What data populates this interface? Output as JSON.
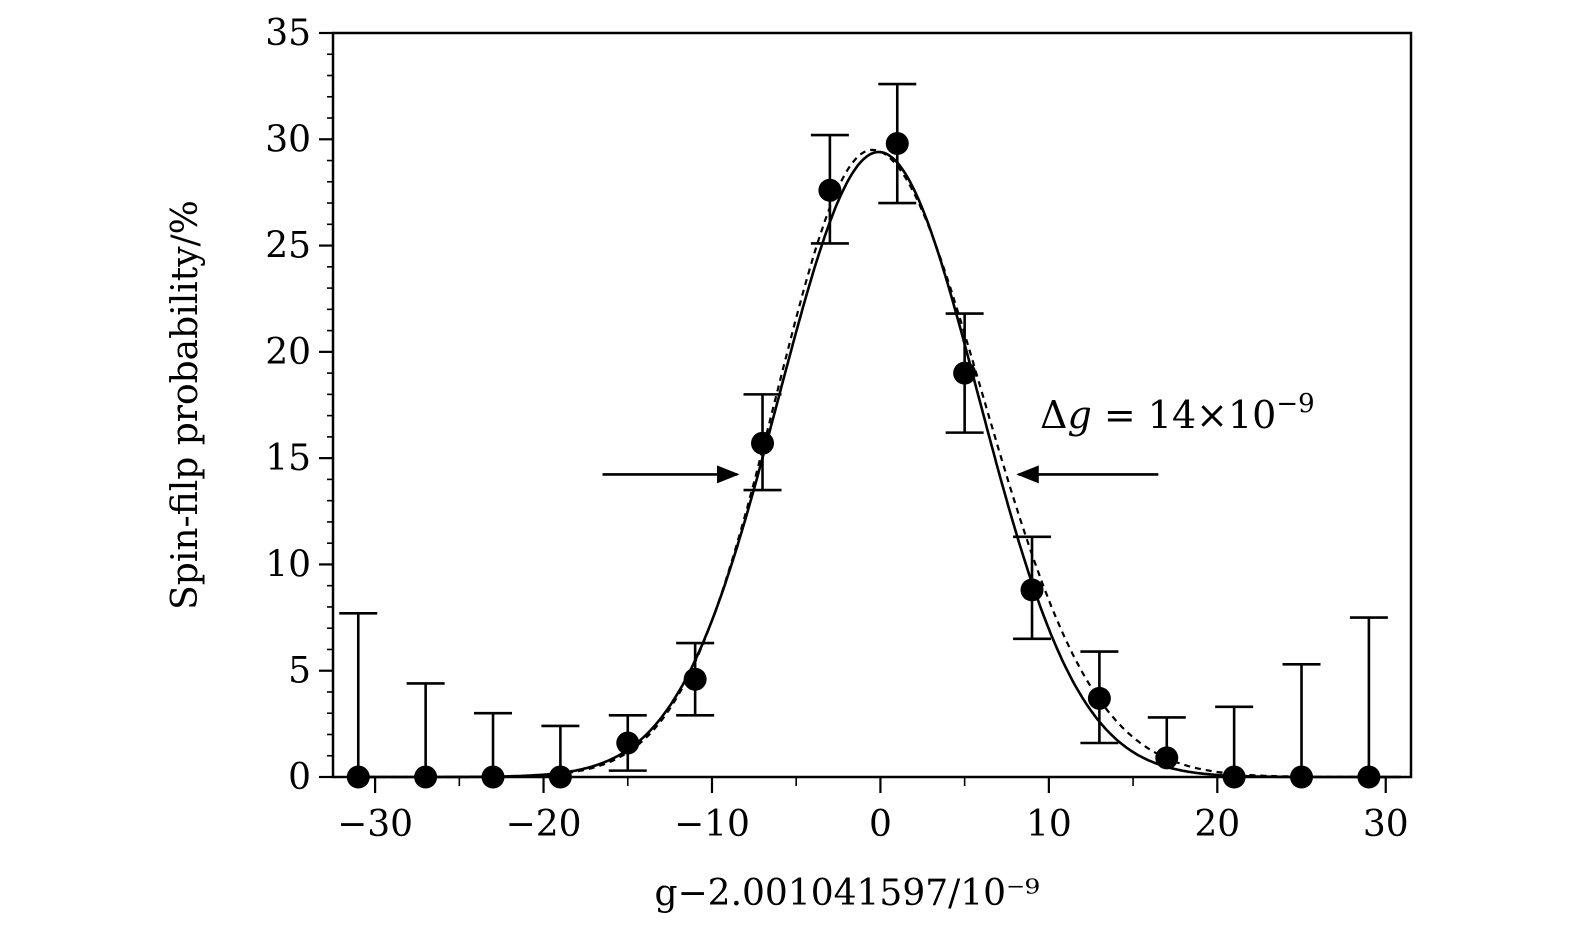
{
  "chart_data": {
    "type": "scatter",
    "xlabel": "g−2.001041597/10⁻⁹",
    "ylabel": "Spin-filp probability/%",
    "xlim": [
      -32.5,
      31.5
    ],
    "ylim": [
      0,
      35
    ],
    "x_ticks": [
      -30,
      -20,
      -10,
      0,
      10,
      20,
      30
    ],
    "x_tick_labels": [
      "−30",
      "−20",
      "−10",
      "0",
      "10",
      "20",
      "30"
    ],
    "y_ticks": [
      0,
      5,
      10,
      15,
      20,
      25,
      30,
      35
    ],
    "y_tick_labels": [
      "0",
      "5",
      "10",
      "15",
      "20",
      "25",
      "30",
      "35"
    ],
    "grid": false,
    "series": [
      {
        "style": "points-with-error-bars",
        "x": [
          -31,
          -27,
          -23,
          -19,
          -15,
          -11,
          -7,
          -3,
          1,
          5,
          9,
          13,
          17,
          21,
          25,
          29
        ],
        "y": [
          0,
          0,
          0,
          0,
          1.6,
          4.6,
          15.7,
          27.6,
          29.8,
          19.0,
          8.8,
          3.7,
          0.9,
          0,
          0,
          0
        ],
        "err_low": [
          0,
          0,
          0,
          0,
          1.3,
          1.7,
          2.2,
          2.5,
          2.8,
          2.8,
          2.3,
          2.1,
          0,
          0,
          0,
          0
        ],
        "err_high": [
          7.7,
          4.4,
          3.0,
          2.4,
          1.3,
          1.7,
          2.3,
          2.6,
          2.8,
          2.8,
          2.5,
          2.2,
          1.9,
          3.3,
          5.3,
          7.5
        ]
      },
      {
        "style": "solid-line",
        "model": "gaussian",
        "amplitude": 29.4,
        "center": -0.1,
        "sigma": 5.95
      },
      {
        "style": "dashed-line",
        "model": "asymmetric-peak",
        "amplitude": 29.5,
        "center": -0.5,
        "sigma_left": 5.7,
        "sigma_right": 6.6
      }
    ],
    "annotation": {
      "text_delta": "Δ",
      "text_g": "g",
      "text_eq": " = 14×10",
      "text_exp": "−9",
      "arrow_left_x": [
        -16.5,
        -8.5
      ],
      "arrow_right_x": [
        16.5,
        8.2
      ],
      "arrow_y": 14.8
    }
  }
}
